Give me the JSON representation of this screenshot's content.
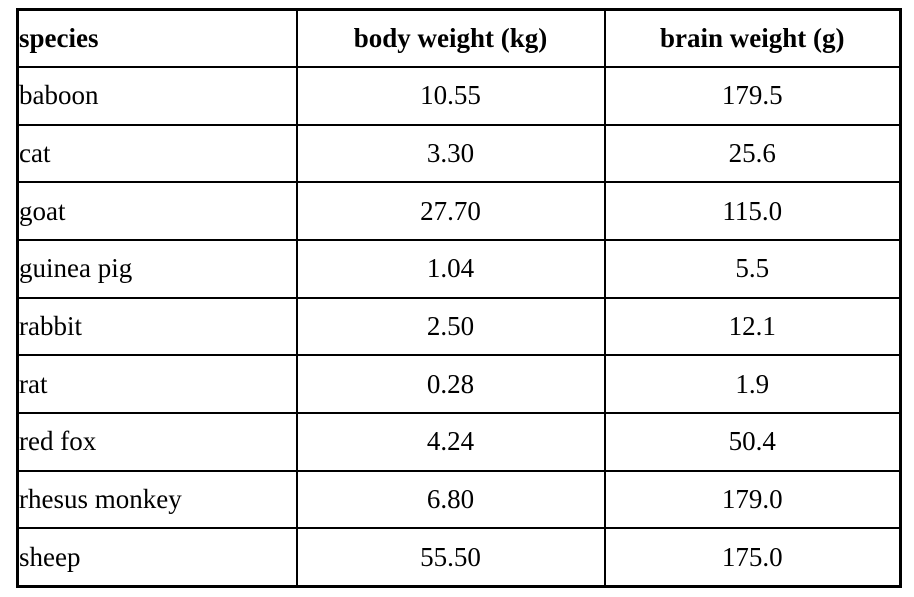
{
  "chart_data": {
    "type": "table",
    "title": "",
    "columns": [
      "species",
      "body weight (kg)",
      "brain weight (g)"
    ],
    "rows": [
      [
        "baboon",
        "10.55",
        "179.5"
      ],
      [
        "cat",
        "3.30",
        "25.6"
      ],
      [
        "goat",
        "27.70",
        "115.0"
      ],
      [
        "guinea pig",
        "1.04",
        "5.5"
      ],
      [
        "rabbit",
        "2.50",
        "12.1"
      ],
      [
        "rat",
        "0.28",
        "1.9"
      ],
      [
        "red fox",
        "4.24",
        "50.4"
      ],
      [
        "rhesus monkey",
        "6.80",
        "179.0"
      ],
      [
        "sheep",
        "55.50",
        "175.0"
      ]
    ],
    "layout": {
      "grid": true,
      "header_bold": true,
      "species_alignment": "left",
      "numeric_alignment": "center"
    }
  },
  "colors": {
    "border": "#000000",
    "text": "#000000",
    "background": "#ffffff"
  }
}
